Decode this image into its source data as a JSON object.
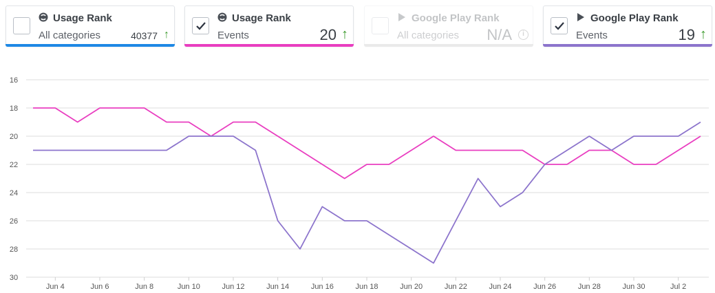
{
  "cards": [
    {
      "icon": "similarweb-icon",
      "title": "Usage Rank",
      "subtitle": "All categories",
      "value": "40377",
      "trend": "up",
      "checked": false,
      "enabled": true,
      "accent": "#1e88e5"
    },
    {
      "icon": "similarweb-icon",
      "title": "Usage Rank",
      "subtitle": "Events",
      "value": "20",
      "trend": "up",
      "checked": true,
      "enabled": true,
      "accent": "#e93ec0"
    },
    {
      "icon": "google-play-icon",
      "title": "Google Play Rank",
      "subtitle": "All categories",
      "value": "N/A",
      "trend": "info",
      "checked": false,
      "enabled": false,
      "accent": "#bbbbbb"
    },
    {
      "icon": "google-play-icon",
      "title": "Google Play Rank",
      "subtitle": "Events",
      "value": "19",
      "trend": "up",
      "checked": true,
      "enabled": true,
      "accent": "#8c74cc"
    }
  ],
  "chart_data": {
    "type": "line",
    "x_tick_labels": [
      "Jun 4",
      "Jun 6",
      "Jun 8",
      "Jun 10",
      "Jun 12",
      "Jun 14",
      "Jun 16",
      "Jun 18",
      "Jun 20",
      "Jun 22",
      "Jun 24",
      "Jun 26",
      "Jun 28",
      "Jun 30",
      "Jul 2"
    ],
    "x": [
      "Jun 3",
      "Jun 4",
      "Jun 5",
      "Jun 6",
      "Jun 7",
      "Jun 8",
      "Jun 9",
      "Jun 10",
      "Jun 11",
      "Jun 12",
      "Jun 13",
      "Jun 14",
      "Jun 15",
      "Jun 16",
      "Jun 17",
      "Jun 18",
      "Jun 19",
      "Jun 20",
      "Jun 21",
      "Jun 22",
      "Jun 23",
      "Jun 24",
      "Jun 25",
      "Jun 26",
      "Jun 27",
      "Jun 28",
      "Jun 29",
      "Jun 30",
      "Jul 1",
      "Jul 2",
      "Jul 3"
    ],
    "ylim": [
      16,
      30
    ],
    "y_reversed": true,
    "y_ticks": [
      16,
      18,
      20,
      22,
      24,
      26,
      28,
      30
    ],
    "grid": "horizontal",
    "series": [
      {
        "color": "#e93ec0",
        "values": [
          18,
          18,
          19,
          18,
          18,
          18,
          19,
          19,
          20,
          19,
          19,
          20,
          21,
          22,
          23,
          22,
          22,
          21,
          20,
          21,
          21,
          21,
          21,
          22,
          22,
          21,
          21,
          22,
          22,
          21,
          20
        ]
      },
      {
        "color": "#8c74cc",
        "values": [
          21,
          21,
          21,
          21,
          21,
          21,
          21,
          20,
          20,
          20,
          21,
          26,
          28,
          25,
          26,
          26,
          27,
          28,
          29,
          26,
          23,
          25,
          24,
          22,
          21,
          20,
          21,
          20,
          20,
          20,
          19
        ]
      }
    ]
  }
}
